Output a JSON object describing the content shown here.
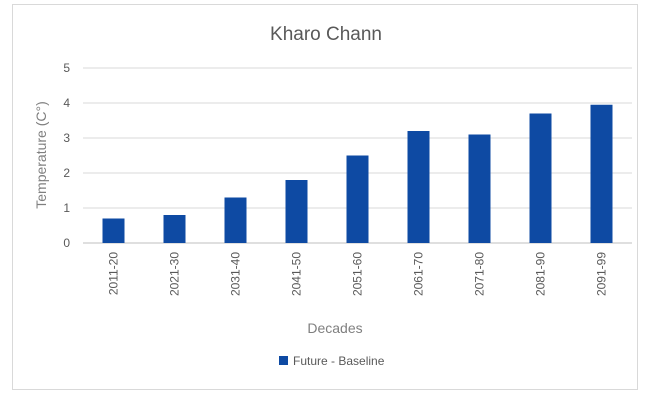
{
  "chart_data": {
    "type": "bar",
    "title": "Kharo Chann",
    "xlabel": "Decades",
    "ylabel": "Temperature (C°)",
    "categories": [
      "2011-20",
      "2021-30",
      "2031-40",
      "2041-50",
      "2051-60",
      "2061-70",
      "2071-80",
      "2081-90",
      "2091-99"
    ],
    "series": [
      {
        "name": "Future - Baseline",
        "values": [
          0.7,
          0.8,
          1.3,
          1.8,
          2.5,
          3.2,
          3.1,
          3.7,
          3.95
        ],
        "color": "#0e4aa3"
      }
    ],
    "ylim": [
      0,
      5
    ],
    "yticks": [
      "0",
      "1",
      "2",
      "3",
      "4",
      "5"
    ],
    "grid": true,
    "legend": "bottom"
  }
}
